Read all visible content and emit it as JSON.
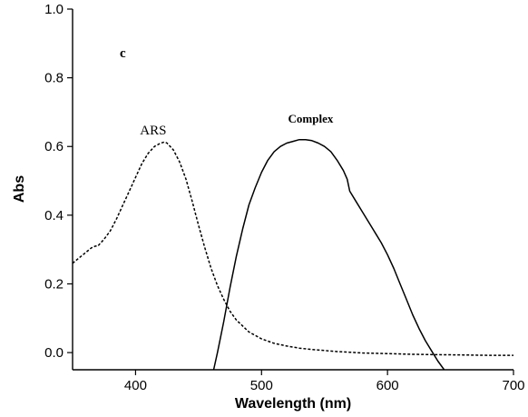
{
  "chart_data": {
    "type": "line",
    "xlabel": "Wavelength (nm)",
    "ylabel": "Abs",
    "xlim": [
      350,
      700
    ],
    "ylim": [
      -0.05,
      1.0
    ],
    "xticks": [
      400,
      500,
      600,
      700
    ],
    "xtick_labels": [
      "400",
      "500",
      "600",
      "700"
    ],
    "yticks": [
      0.0,
      0.2,
      0.4,
      0.6,
      0.8,
      1.0
    ],
    "ytick_labels": [
      "0.0",
      "0.2",
      "0.4",
      "0.6",
      "0.8",
      "1.0"
    ],
    "grid": false,
    "legend": "none",
    "panel_label": "c",
    "annotations": [
      {
        "text": "ARS",
        "x": 414,
        "y": 0.635
      },
      {
        "text": "Complex",
        "x": 539,
        "y": 0.67
      }
    ],
    "series": [
      {
        "style": "dashed",
        "color": "#000000",
        "x": [
          350,
          355,
          360,
          365,
          368,
          370,
          375,
          380,
          385,
          390,
          395,
          400,
          405,
          410,
          415,
          420,
          423,
          425,
          430,
          435,
          440,
          445,
          450,
          455,
          460,
          465,
          470,
          475,
          480,
          490,
          500,
          510,
          520,
          530,
          540,
          550,
          560,
          570,
          580,
          600,
          620,
          640,
          660,
          680,
          700
        ],
        "y": [
          0.26,
          0.275,
          0.29,
          0.305,
          0.31,
          0.31,
          0.33,
          0.355,
          0.39,
          0.43,
          0.47,
          0.51,
          0.55,
          0.58,
          0.6,
          0.61,
          0.613,
          0.61,
          0.59,
          0.555,
          0.505,
          0.44,
          0.37,
          0.305,
          0.245,
          0.195,
          0.155,
          0.12,
          0.095,
          0.06,
          0.04,
          0.027,
          0.019,
          0.013,
          0.009,
          0.006,
          0.003,
          0.001,
          -0.001,
          -0.003,
          -0.005,
          -0.006,
          -0.007,
          -0.008,
          -0.008
        ]
      },
      {
        "style": "solid",
        "color": "#000000",
        "x": [
          462,
          465,
          470,
          475,
          480,
          485,
          490,
          495,
          500,
          505,
          510,
          515,
          520,
          525,
          530,
          535,
          540,
          545,
          550,
          555,
          560,
          565,
          568,
          570,
          575,
          580,
          585,
          590,
          595,
          600,
          605,
          610,
          615,
          620,
          625,
          630,
          635,
          640,
          645
        ],
        "y": [
          -0.05,
          0.0,
          0.09,
          0.19,
          0.28,
          0.36,
          0.43,
          0.48,
          0.525,
          0.56,
          0.585,
          0.6,
          0.61,
          0.615,
          0.62,
          0.62,
          0.617,
          0.61,
          0.6,
          0.585,
          0.56,
          0.53,
          0.505,
          0.47,
          0.44,
          0.41,
          0.38,
          0.35,
          0.32,
          0.285,
          0.245,
          0.2,
          0.155,
          0.11,
          0.07,
          0.035,
          0.005,
          -0.025,
          -0.05
        ]
      }
    ]
  }
}
